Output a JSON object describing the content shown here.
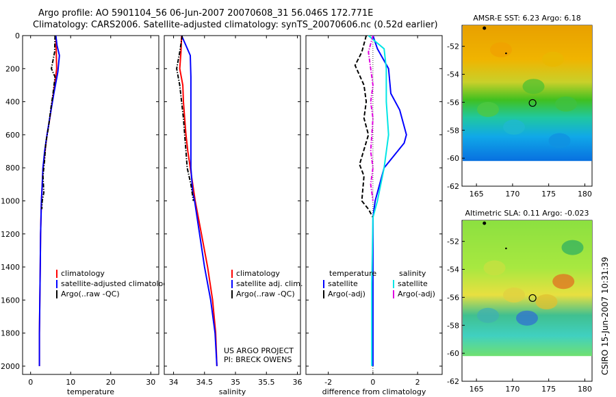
{
  "titles": {
    "line1": "Argo profile: AO 5901104_56 06-Jun-2007 20070608_31 56.046S 172.771E",
    "line2": "Climatology: CARS2006. Satellite-adjusted climatology: synTS_20070606.nc (0.52d earlier)"
  },
  "side_label": "CSIRO 15-Jun-2007 10:31:39",
  "colors": {
    "red": "#ff0000",
    "blue": "#0000ff",
    "black": "#000000",
    "cyan": "#00e5e5",
    "magenta": "#e000e0"
  },
  "chart_data": [
    {
      "id": "temperature",
      "type": "line",
      "xlabel": "temperature",
      "ylabel": "",
      "xlim": [
        -2,
        32
      ],
      "ylim": [
        2050,
        0
      ],
      "xticks": [
        0,
        10,
        20,
        30
      ],
      "yticks": [
        0,
        200,
        400,
        600,
        800,
        1000,
        1200,
        1400,
        1600,
        1800,
        2000
      ],
      "legend": [
        "climatology",
        "satellite-adjusted climatology",
        "Argo(..raw -QC)"
      ],
      "legend_colors": [
        "red",
        "blue",
        "black"
      ],
      "series": [
        {
          "name": "climatology",
          "color": "red",
          "style": "solid",
          "x": [
            6.3,
            6.4,
            6.5,
            6.0,
            5.4,
            4.8,
            4.1,
            3.6,
            3.1,
            2.9,
            2.7,
            2.5,
            2.4,
            2.3,
            2.2,
            2.2
          ],
          "y": [
            0,
            100,
            200,
            300,
            400,
            500,
            600,
            700,
            800,
            900,
            1000,
            1200,
            1400,
            1600,
            1800,
            2000
          ]
        },
        {
          "name": "satellite-adjusted climatology",
          "color": "blue",
          "style": "solid",
          "x": [
            6.3,
            6.6,
            7.2,
            6.8,
            5.8,
            4.9,
            4.1,
            3.5,
            3.1,
            2.9,
            2.7,
            2.5,
            2.4,
            2.3,
            2.2,
            2.2
          ],
          "y": [
            0,
            60,
            120,
            220,
            350,
            480,
            600,
            700,
            800,
            900,
            1000,
            1200,
            1400,
            1600,
            1800,
            2000
          ]
        },
        {
          "name": "Argo(..raw -QC)",
          "color": "black",
          "style": "dashdot",
          "x": [
            6.1,
            6.0,
            5.2,
            6.1,
            5.6,
            5.0,
            4.5,
            3.8,
            3.5,
            3.1,
            3.3,
            2.9,
            2.8
          ],
          "y": [
            0,
            100,
            200,
            250,
            350,
            450,
            550,
            650,
            750,
            850,
            950,
            1000,
            1050
          ]
        }
      ]
    },
    {
      "id": "salinity",
      "type": "line",
      "xlabel": "salinity",
      "ylabel": "",
      "xlim": [
        33.85,
        36.05
      ],
      "ylim": [
        2050,
        0
      ],
      "xticks": [
        34,
        34.5,
        35,
        35.5,
        36
      ],
      "xticklabels": [
        "34",
        "34.5",
        "35",
        "35.5",
        "36"
      ],
      "legend": [
        "climatology",
        "satellite adj. clim.",
        "Argo(..raw -QC)"
      ],
      "legend_colors": [
        "red",
        "blue",
        "black"
      ],
      "annotations": [
        "US ARGO PROJECT",
        "PI: BRECK OWENS"
      ],
      "series": [
        {
          "name": "climatology",
          "color": "red",
          "style": "solid",
          "x": [
            34.13,
            34.12,
            34.1,
            34.15,
            34.16,
            34.18,
            34.2,
            34.23,
            34.27,
            34.31,
            34.35,
            34.45,
            34.55,
            34.63,
            34.68,
            34.7
          ],
          "y": [
            0,
            100,
            200,
            300,
            400,
            500,
            600,
            700,
            800,
            900,
            1000,
            1200,
            1400,
            1600,
            1800,
            2000
          ]
        },
        {
          "name": "satellite adj. clim.",
          "color": "blue",
          "style": "solid",
          "x": [
            34.13,
            34.2,
            34.27,
            34.28,
            34.28,
            34.28,
            34.28,
            34.28,
            34.3,
            34.31,
            34.34,
            34.42,
            34.5,
            34.6,
            34.67,
            34.7
          ],
          "y": [
            0,
            60,
            120,
            250,
            400,
            550,
            700,
            800,
            900,
            950,
            1000,
            1200,
            1400,
            1600,
            1800,
            2000
          ]
        },
        {
          "name": "Argo(..raw -QC)",
          "color": "black",
          "style": "dashdot",
          "x": [
            34.14,
            34.1,
            34.05,
            34.1,
            34.13,
            34.16,
            34.18,
            34.2,
            34.22,
            34.28,
            34.3,
            34.32
          ],
          "y": [
            0,
            100,
            200,
            300,
            400,
            500,
            600,
            700,
            800,
            900,
            950,
            1000
          ]
        }
      ]
    },
    {
      "id": "difference",
      "type": "line",
      "xlabel": "difference from climatology",
      "ylabel": "",
      "xlim": [
        -3,
        3.1
      ],
      "ylim": [
        2050,
        0
      ],
      "xticks": [
        -2,
        0,
        2
      ],
      "legend_temperature_title": "temperature",
      "legend_salinity_title": "salinity",
      "legend": [
        "satellite",
        "Argo(-adj)",
        "satellite",
        "Argo(-adj)"
      ],
      "legend_colors": [
        "blue",
        "black",
        "cyan",
        "magenta"
      ],
      "series": [
        {
          "name": "temperature satellite",
          "color": "blue",
          "style": "solid",
          "x": [
            0,
            0.2,
            0.7,
            0.8,
            1.2,
            1.5,
            1.4,
            0.5,
            0.1,
            0,
            0,
            0
          ],
          "y": [
            0,
            80,
            200,
            350,
            450,
            600,
            650,
            800,
            1000,
            1100,
            1500,
            2000
          ]
        },
        {
          "name": "temperature Argo(-adj)",
          "color": "black",
          "style": "dashed",
          "x": [
            -0.3,
            -0.5,
            -0.8,
            -0.4,
            -0.3,
            -0.4,
            -0.2,
            -0.6,
            -0.4,
            -0.5,
            -0.2,
            0
          ],
          "y": [
            0,
            100,
            180,
            300,
            400,
            500,
            600,
            780,
            850,
            1000,
            1050,
            1100
          ]
        },
        {
          "name": "salinity satellite",
          "color": "cyan",
          "style": "solid",
          "x": [
            -0.2,
            0.5,
            0.6,
            0.6,
            0.7,
            0.5,
            0.2,
            0,
            -0.05,
            -0.05
          ],
          "y": [
            0,
            80,
            200,
            400,
            600,
            800,
            1000,
            1100,
            1500,
            2000
          ]
        },
        {
          "name": "salinity Argo(-adj)",
          "color": "magenta",
          "style": "dashdot",
          "x": [
            0,
            -0.2,
            -0.1,
            0,
            -0.1,
            0,
            -0.1,
            0,
            -0.1,
            0
          ],
          "y": [
            0,
            100,
            200,
            300,
            400,
            500,
            700,
            800,
            900,
            1000
          ]
        }
      ]
    }
  ],
  "maps": [
    {
      "title": "AMSR-E SST: 6.23 Argo: 6.18",
      "xticks": [
        165,
        170,
        175,
        180
      ],
      "yticks": [
        -52,
        -54,
        -56,
        -58,
        -60,
        -62
      ],
      "xlim": [
        163,
        181
      ],
      "ylim": [
        -62,
        -50.5
      ],
      "data_extent": [
        -50.5,
        -60.2
      ],
      "argo_marker": {
        "lon": 172.77,
        "lat": -56.05
      }
    },
    {
      "title": "Altimetric SLA: 0.11 Argo: -0.023",
      "xticks": [
        165,
        170,
        175,
        180
      ],
      "yticks": [
        -52,
        -54,
        -56,
        -58,
        -60,
        -62
      ],
      "xlim": [
        163,
        181
      ],
      "ylim": [
        -62,
        -50.5
      ],
      "data_extent": [
        -50.5,
        -60.2
      ],
      "argo_marker": {
        "lon": 172.77,
        "lat": -56.05
      }
    }
  ]
}
